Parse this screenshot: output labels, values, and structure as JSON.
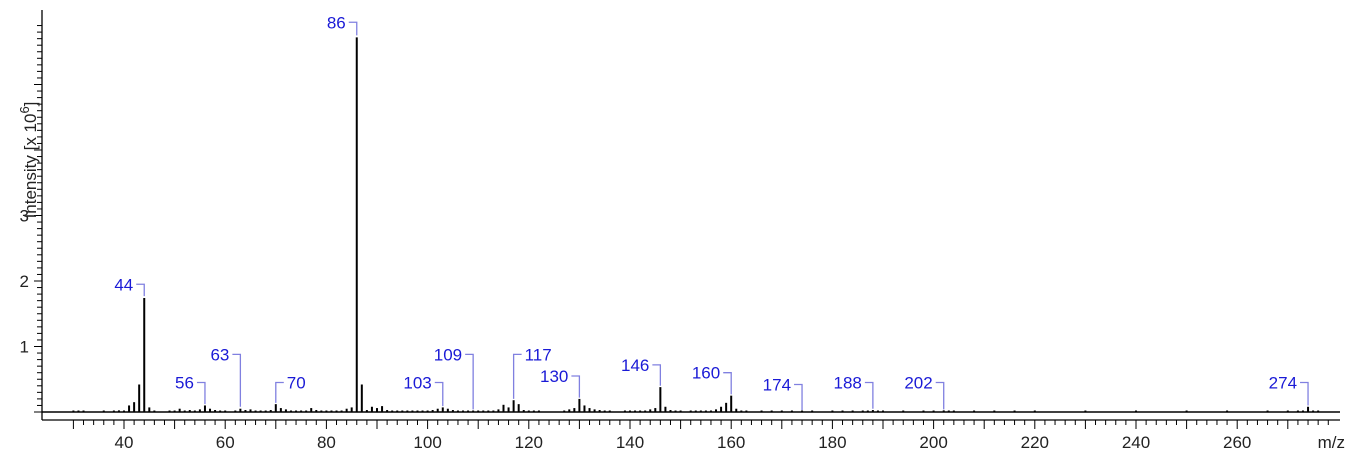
{
  "chart_data": {
    "type": "bar",
    "title": "",
    "xlabel": "m/z",
    "ylabel": "Intensity [x 10^6]",
    "ylabel_main": "Intensity [x 10",
    "ylabel_exp": "6",
    "ylabel_close": "]",
    "xlim": [
      28,
      280
    ],
    "ylim": [
      0,
      5.9
    ],
    "x_ticks": [
      40,
      60,
      80,
      100,
      120,
      140,
      160,
      180,
      200,
      220,
      240,
      260
    ],
    "y_ticks": [
      1,
      2,
      3
    ],
    "grid": false,
    "legend": "none",
    "colors": {
      "bars": "#000000",
      "label_text": "#1a1ad6",
      "label_bracket": "#8080e0",
      "axis": "#000000"
    },
    "peaks": [
      [
        30,
        0.004
      ],
      [
        31,
        0.006
      ],
      [
        32,
        0.004
      ],
      [
        36,
        0.004
      ],
      [
        38,
        0.012
      ],
      [
        39,
        0.025
      ],
      [
        40,
        0.01
      ],
      [
        41,
        0.1
      ],
      [
        42,
        0.15
      ],
      [
        43,
        0.42
      ],
      [
        44,
        1.74
      ],
      [
        45,
        0.07
      ],
      [
        46,
        0.01
      ],
      [
        49,
        0.01
      ],
      [
        50,
        0.02
      ],
      [
        51,
        0.05
      ],
      [
        52,
        0.02
      ],
      [
        53,
        0.03
      ],
      [
        54,
        0.02
      ],
      [
        55,
        0.04
      ],
      [
        56,
        0.1
      ],
      [
        57,
        0.05
      ],
      [
        58,
        0.03
      ],
      [
        59,
        0.02
      ],
      [
        60,
        0.01
      ],
      [
        62,
        0.02
      ],
      [
        63,
        0.05
      ],
      [
        64,
        0.03
      ],
      [
        65,
        0.04
      ],
      [
        66,
        0.02
      ],
      [
        67,
        0.02
      ],
      [
        68,
        0.01
      ],
      [
        69,
        0.03
      ],
      [
        70,
        0.12
      ],
      [
        71,
        0.06
      ],
      [
        72,
        0.04
      ],
      [
        73,
        0.02
      ],
      [
        74,
        0.01
      ],
      [
        75,
        0.02
      ],
      [
        76,
        0.02
      ],
      [
        77,
        0.06
      ],
      [
        78,
        0.03
      ],
      [
        79,
        0.01
      ],
      [
        80,
        0.01
      ],
      [
        81,
        0.02
      ],
      [
        82,
        0.02
      ],
      [
        83,
        0.02
      ],
      [
        84,
        0.05
      ],
      [
        85,
        0.07
      ],
      [
        86,
        5.72
      ],
      [
        87,
        0.42
      ],
      [
        88,
        0.03
      ],
      [
        89,
        0.08
      ],
      [
        90,
        0.06
      ],
      [
        91,
        0.09
      ],
      [
        92,
        0.03
      ],
      [
        93,
        0.02
      ],
      [
        94,
        0.01
      ],
      [
        95,
        0.01
      ],
      [
        96,
        0.01
      ],
      [
        97,
        0.01
      ],
      [
        98,
        0.01
      ],
      [
        99,
        0.01
      ],
      [
        100,
        0.01
      ],
      [
        101,
        0.03
      ],
      [
        102,
        0.05
      ],
      [
        103,
        0.07
      ],
      [
        104,
        0.05
      ],
      [
        105,
        0.03
      ],
      [
        106,
        0.02
      ],
      [
        107,
        0.02
      ],
      [
        108,
        0.01
      ],
      [
        109,
        0.02
      ],
      [
        110,
        0.01
      ],
      [
        111,
        0.01
      ],
      [
        112,
        0.02
      ],
      [
        113,
        0.02
      ],
      [
        114,
        0.04
      ],
      [
        115,
        0.11
      ],
      [
        116,
        0.07
      ],
      [
        117,
        0.18
      ],
      [
        118,
        0.12
      ],
      [
        119,
        0.03
      ],
      [
        120,
        0.01
      ],
      [
        121,
        0.01
      ],
      [
        122,
        0.01
      ],
      [
        127,
        0.01
      ],
      [
        128,
        0.04
      ],
      [
        129,
        0.06
      ],
      [
        130,
        0.2
      ],
      [
        131,
        0.1
      ],
      [
        132,
        0.06
      ],
      [
        133,
        0.04
      ],
      [
        134,
        0.03
      ],
      [
        135,
        0.02
      ],
      [
        136,
        0.01
      ],
      [
        139,
        0.01
      ],
      [
        140,
        0.01
      ],
      [
        141,
        0.01
      ],
      [
        142,
        0.02
      ],
      [
        143,
        0.02
      ],
      [
        144,
        0.04
      ],
      [
        145,
        0.06
      ],
      [
        146,
        0.38
      ],
      [
        147,
        0.08
      ],
      [
        148,
        0.03
      ],
      [
        149,
        0.01
      ],
      [
        150,
        0.01
      ],
      [
        152,
        0.01
      ],
      [
        153,
        0.01
      ],
      [
        154,
        0.01
      ],
      [
        155,
        0.01
      ],
      [
        156,
        0.02
      ],
      [
        157,
        0.04
      ],
      [
        158,
        0.08
      ],
      [
        159,
        0.14
      ],
      [
        160,
        0.25
      ],
      [
        161,
        0.05
      ],
      [
        162,
        0.02
      ],
      [
        163,
        0.01
      ],
      [
        166,
        0.01
      ],
      [
        168,
        0.01
      ],
      [
        170,
        0.01
      ],
      [
        172,
        0.01
      ],
      [
        174,
        0.01
      ],
      [
        176,
        0.01
      ],
      [
        180,
        0.01
      ],
      [
        182,
        0.01
      ],
      [
        184,
        0.01
      ],
      [
        186,
        0.01
      ],
      [
        187,
        0.01
      ],
      [
        188,
        0.03
      ],
      [
        189,
        0.01
      ],
      [
        190,
        0.01
      ],
      [
        194,
        0.01
      ],
      [
        198,
        0.01
      ],
      [
        200,
        0.01
      ],
      [
        202,
        0.025
      ],
      [
        203,
        0.01
      ],
      [
        204,
        0.01
      ],
      [
        208,
        0.005
      ],
      [
        212,
        0.005
      ],
      [
        216,
        0.005
      ],
      [
        220,
        0.005
      ],
      [
        230,
        0.005
      ],
      [
        240,
        0.005
      ],
      [
        250,
        0.005
      ],
      [
        258,
        0.005
      ],
      [
        266,
        0.005
      ],
      [
        270,
        0.005
      ],
      [
        272,
        0.01
      ],
      [
        273,
        0.02
      ],
      [
        274,
        0.08
      ],
      [
        275,
        0.02
      ],
      [
        276,
        0.01
      ]
    ],
    "labels": [
      {
        "x": 44,
        "text": "44",
        "bracket_top": 1.95,
        "stem_bottom": 1.77
      },
      {
        "x": 56,
        "text": "56",
        "bracket_top": 0.45,
        "stem_bottom": 0.12
      },
      {
        "x": 63,
        "text": "63",
        "bracket_top": 0.88,
        "stem_bottom": 0.08
      },
      {
        "x": 70,
        "text": "70",
        "bracket_top": 0.45,
        "stem_bottom": 0.14
      },
      {
        "x": 86,
        "text": "86",
        "bracket_top": 5.95,
        "stem_bottom": 5.75
      },
      {
        "x": 103,
        "text": "103",
        "bracket_top": 0.45,
        "stem_bottom": 0.09
      },
      {
        "x": 109,
        "text": "109",
        "bracket_top": 0.88,
        "stem_bottom": 0.04
      },
      {
        "x": 117,
        "text": "117",
        "bracket_top": 0.88,
        "stem_bottom": 0.2
      },
      {
        "x": 130,
        "text": "130",
        "bracket_top": 0.55,
        "stem_bottom": 0.22
      },
      {
        "x": 146,
        "text": "146",
        "bracket_top": 0.72,
        "stem_bottom": 0.4
      },
      {
        "x": 160,
        "text": "160",
        "bracket_top": 0.6,
        "stem_bottom": 0.27
      },
      {
        "x": 174,
        "text": "174",
        "bracket_top": 0.42,
        "stem_bottom": 0.03
      },
      {
        "x": 188,
        "text": "188",
        "bracket_top": 0.45,
        "stem_bottom": 0.05
      },
      {
        "x": 202,
        "text": "202",
        "bracket_top": 0.45,
        "stem_bottom": 0.04
      },
      {
        "x": 274,
        "text": "274",
        "bracket_top": 0.45,
        "stem_bottom": 0.1
      }
    ]
  }
}
